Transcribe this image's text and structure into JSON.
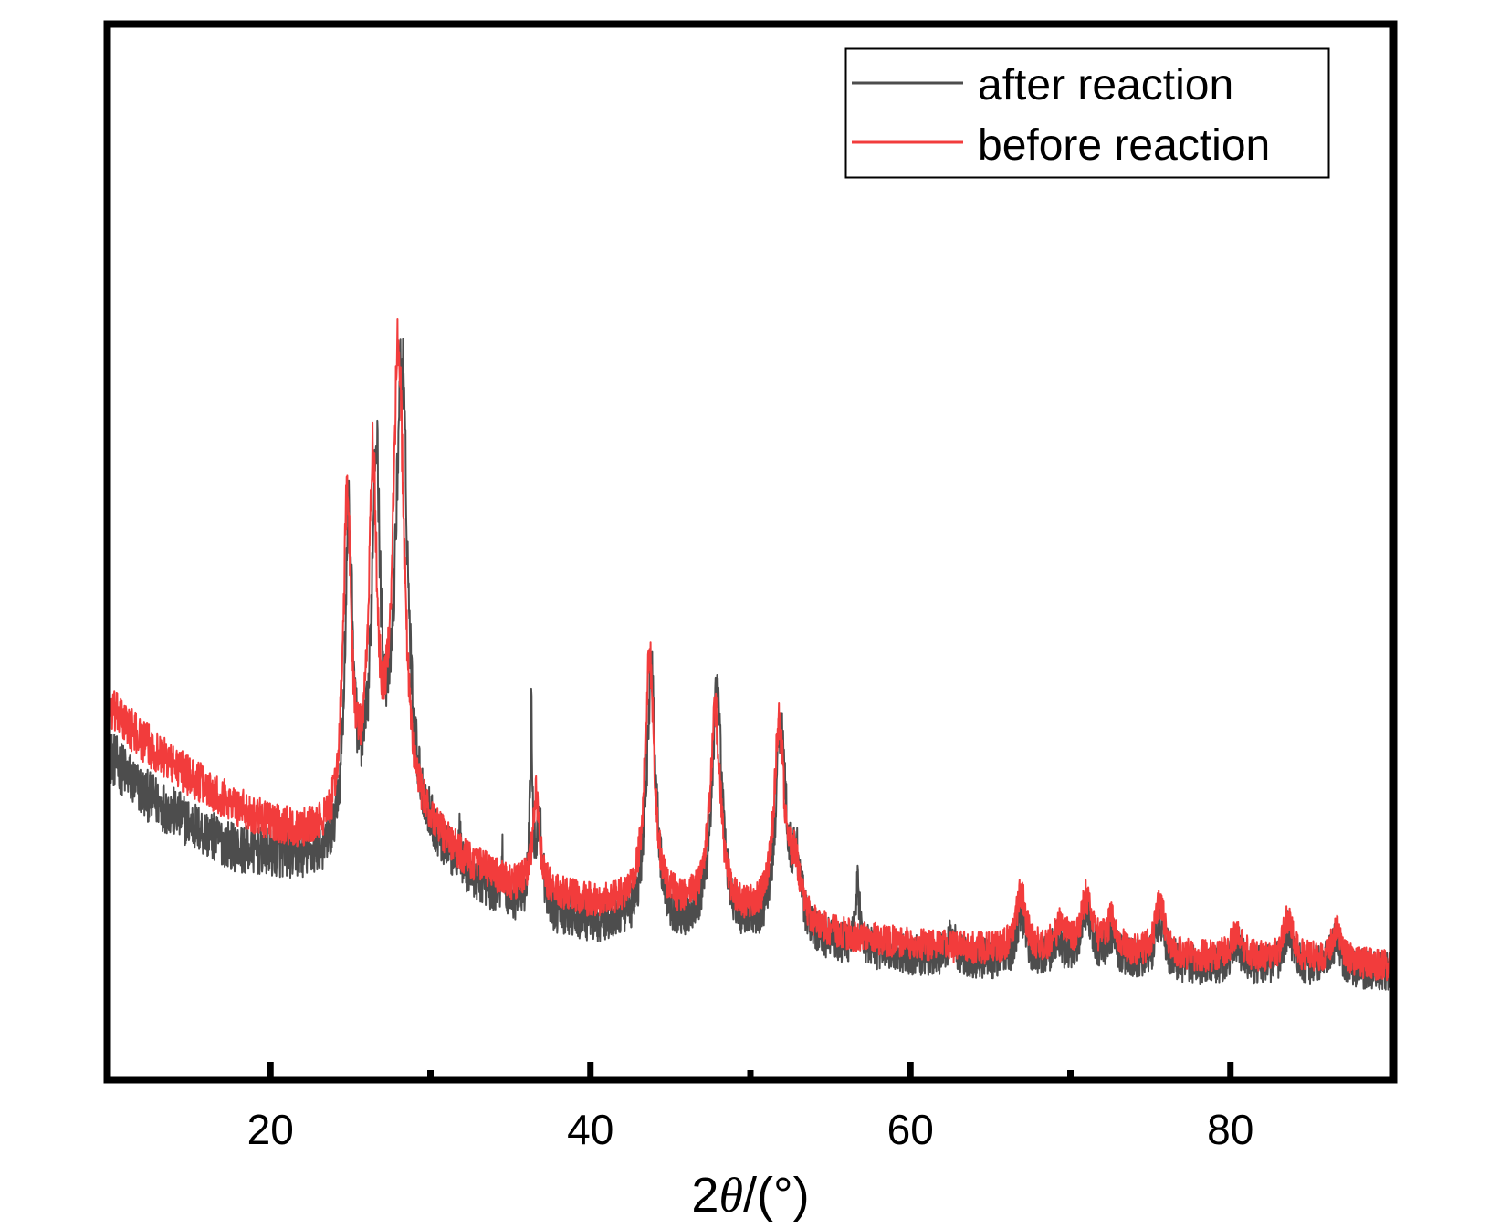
{
  "chart_data": {
    "type": "line",
    "title": "",
    "xlabel": "2θ/(°)",
    "xlabel_parts": {
      "prefix": "2",
      "symbol": "θ",
      "suffix": "/(°)"
    },
    "ylabel": "",
    "xlim": [
      10,
      90
    ],
    "ylim": [
      0,
      100
    ],
    "y_units": "arbitrary intensity (no y tick labels shown)",
    "grid": false,
    "x_ticks_major": [
      20,
      40,
      60,
      80
    ],
    "x_tick_labels": [
      "20",
      "40",
      "60",
      "80"
    ],
    "x_ticks_minor": [
      30,
      50,
      70
    ],
    "legend": {
      "placement": "top-right",
      "entries": [
        "after reaction",
        "before reaction"
      ]
    },
    "series": [
      {
        "name": "after reaction",
        "color": "#4d4d4d",
        "noise": 2.6,
        "baseline": [
          [
            10,
            30.5
          ],
          [
            12,
            27
          ],
          [
            14,
            25
          ],
          [
            16,
            23
          ],
          [
            18,
            21.5
          ],
          [
            20,
            21
          ],
          [
            22,
            20.5
          ],
          [
            23.8,
            20.3
          ],
          [
            26,
            24
          ],
          [
            30,
            22
          ],
          [
            32,
            19
          ],
          [
            35,
            16.5
          ],
          [
            38,
            15
          ],
          [
            40,
            14.5
          ],
          [
            45,
            14
          ],
          [
            50,
            13.5
          ],
          [
            55,
            12.5
          ],
          [
            60,
            11.5
          ],
          [
            65,
            11
          ],
          [
            70,
            10.8
          ],
          [
            75,
            10.6
          ],
          [
            80,
            10.4
          ],
          [
            85,
            10.3
          ],
          [
            90,
            10
          ]
        ],
        "peaks": [
          [
            24.9,
            29.5,
            0.3
          ],
          [
            26.6,
            34,
            0.3
          ],
          [
            28.2,
            44,
            0.45
          ],
          [
            31.8,
            4,
            0.08
          ],
          [
            34.5,
            4,
            0.08
          ],
          [
            36.3,
            17,
            0.1
          ],
          [
            36.8,
            8,
            0.25
          ],
          [
            43.8,
            24.5,
            0.35
          ],
          [
            47.9,
            22,
            0.4
          ],
          [
            51.9,
            19.5,
            0.4
          ],
          [
            52.9,
            6,
            0.35
          ],
          [
            56.7,
            6,
            0.15
          ],
          [
            62.6,
            2,
            0.3
          ],
          [
            66.9,
            4.5,
            0.35
          ],
          [
            69.2,
            2,
            0.4
          ],
          [
            71.0,
            5,
            0.4
          ],
          [
            72.6,
            2.5,
            0.4
          ],
          [
            75.6,
            4.5,
            0.35
          ],
          [
            80.4,
            2,
            0.4
          ],
          [
            83.6,
            3.5,
            0.35
          ],
          [
            86.6,
            2.5,
            0.4
          ]
        ]
      },
      {
        "name": "before reaction",
        "color": "#f23c3c",
        "noise": 2.0,
        "baseline": [
          [
            10,
            35
          ],
          [
            12,
            32
          ],
          [
            14,
            29.5
          ],
          [
            16,
            27.5
          ],
          [
            18,
            25.5
          ],
          [
            20,
            24
          ],
          [
            22,
            23
          ],
          [
            23.8,
            22.8
          ],
          [
            26,
            25
          ],
          [
            30,
            23
          ],
          [
            32,
            20.5
          ],
          [
            35,
            18
          ],
          [
            38,
            17
          ],
          [
            40,
            16.5
          ],
          [
            45,
            16
          ],
          [
            50,
            15
          ],
          [
            55,
            13.5
          ],
          [
            60,
            12.5
          ],
          [
            65,
            12
          ],
          [
            70,
            11.8
          ],
          [
            75,
            11.5
          ],
          [
            80,
            11.2
          ],
          [
            85,
            11
          ],
          [
            90,
            10.5
          ]
        ],
        "peaks": [
          [
            24.8,
            30.5,
            0.3
          ],
          [
            26.4,
            31,
            0.3
          ],
          [
            28.0,
            45,
            0.42
          ],
          [
            36.6,
            9,
            0.28
          ],
          [
            43.7,
            23.5,
            0.35
          ],
          [
            47.8,
            19,
            0.4
          ],
          [
            51.8,
            18.5,
            0.4
          ],
          [
            52.8,
            5,
            0.35
          ],
          [
            66.9,
            5.5,
            0.35
          ],
          [
            69.4,
            2.5,
            0.4
          ],
          [
            71.0,
            5,
            0.4
          ],
          [
            72.6,
            3,
            0.4
          ],
          [
            75.6,
            5,
            0.35
          ],
          [
            80.4,
            2.5,
            0.4
          ],
          [
            83.6,
            4,
            0.35
          ],
          [
            86.6,
            3,
            0.4
          ]
        ]
      }
    ]
  }
}
